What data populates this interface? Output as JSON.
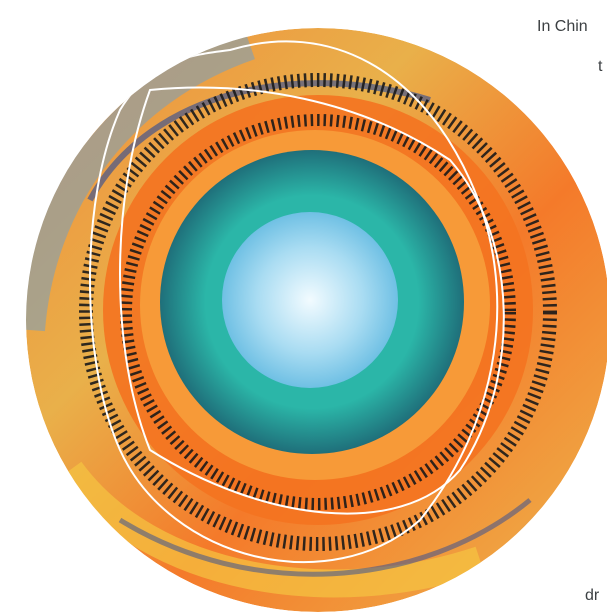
{
  "texts": {
    "line1": "In Chin",
    "line2": "t",
    "line3": "dr"
  }
}
